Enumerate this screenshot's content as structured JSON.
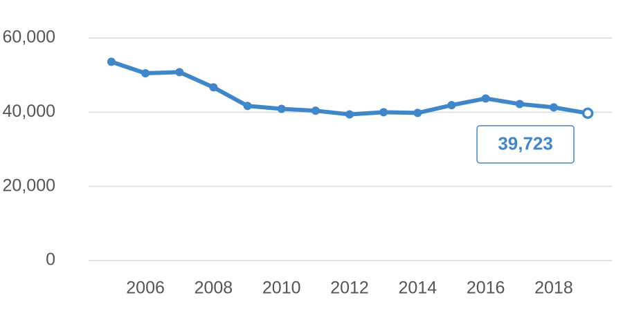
{
  "chart_data": {
    "type": "line",
    "x": [
      2005,
      2006,
      2007,
      2008,
      2009,
      2010,
      2011,
      2012,
      2013,
      2014,
      2015,
      2016,
      2017,
      2018,
      2019
    ],
    "values": [
      53600,
      50500,
      50800,
      46700,
      41700,
      40900,
      40400,
      39400,
      40000,
      39800,
      41900,
      43700,
      42200,
      41300,
      39723
    ],
    "value_labels": [
      null,
      null,
      null,
      null,
      null,
      null,
      null,
      null,
      null,
      null,
      null,
      null,
      null,
      null,
      "39,723"
    ],
    "color": "#3f87c9",
    "xlim": [
      2004.33,
      2019.71
    ],
    "xticks": [
      2006,
      2008,
      2010,
      2012,
      2014,
      2016,
      2018
    ],
    "ylim": [
      0,
      60000
    ],
    "yticks": [
      0,
      {
        "value": 20000,
        "label": "20,000"
      },
      {
        "value": 40000,
        "label": "40,000"
      },
      {
        "value": 60000,
        "label": "60,000"
      }
    ],
    "grid": true
  }
}
